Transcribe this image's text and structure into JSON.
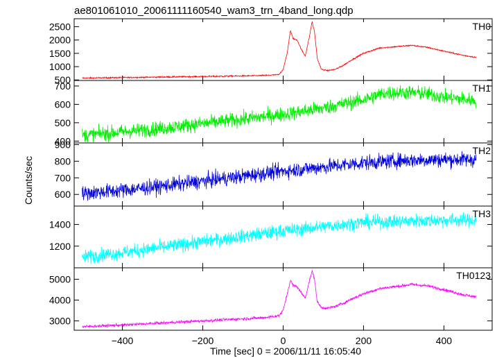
{
  "chart_data": {
    "type": "line",
    "title": "ae801061010_20061111160540_wam3_trn_4band_long.qdp",
    "xlabel": "Time [sec] 0 = 2006/11/11 16:05:40",
    "ylabel": "Counts/sec",
    "xlim": [
      -520,
      520
    ],
    "xticks": [
      -400,
      -200,
      0,
      200,
      400
    ],
    "xtick_labels": [
      "−400",
      "−200",
      "0",
      "200",
      "400"
    ],
    "panels": [
      {
        "name": "TH0",
        "color": "#ff0000",
        "ylim": [
          480,
          2800
        ],
        "yticks": [
          500,
          1000,
          1500,
          2000,
          2500
        ],
        "ytick_labels": [
          "500",
          "1000",
          "1500",
          "2000",
          "2500"
        ],
        "noise": 18,
        "x": [
          -500,
          -400,
          -300,
          -200,
          -100,
          -50,
          -10,
          0,
          10,
          18,
          25,
          35,
          45,
          55,
          65,
          72,
          78,
          85,
          95,
          110,
          130,
          150,
          170,
          200,
          240,
          280,
          320,
          360,
          400,
          450,
          480
        ],
        "y": [
          570,
          590,
          610,
          630,
          650,
          665,
          700,
          900,
          1500,
          2350,
          2050,
          2000,
          1650,
          1400,
          2100,
          2700,
          2300,
          1300,
          900,
          850,
          900,
          1050,
          1250,
          1500,
          1700,
          1750,
          1800,
          1720,
          1580,
          1420,
          1350
        ]
      },
      {
        "name": "TH1",
        "color": "#00ee00",
        "ylim": [
          390,
          730
        ],
        "yticks": [
          400,
          500,
          600,
          700
        ],
        "ytick_labels": [
          "400",
          "500",
          "600",
          "700"
        ],
        "noise": 28,
        "x": [
          -500,
          -400,
          -300,
          -200,
          -100,
          0,
          100,
          200,
          250,
          300,
          350,
          400,
          480
        ],
        "y": [
          430,
          450,
          470,
          495,
          520,
          545,
          580,
          625,
          660,
          665,
          660,
          640,
          620
        ]
      },
      {
        "name": "TH2",
        "color": "#0000dd",
        "ylim": [
          530,
          910
        ],
        "yticks": [
          600,
          700,
          800,
          900
        ],
        "ytick_labels": [
          "600",
          "700",
          "800",
          "900"
        ],
        "noise": 32,
        "x": [
          -500,
          -400,
          -300,
          -200,
          -100,
          0,
          100,
          200,
          300,
          400,
          480
        ],
        "y": [
          605,
          625,
          650,
          680,
          710,
          740,
          765,
          790,
          805,
          810,
          810
        ]
      },
      {
        "name": "TH3",
        "color": "#00ffff",
        "ylim": [
          1000,
          1570
        ],
        "yticks": [
          1200,
          1400
        ],
        "ytick_labels": [
          "1200",
          "1400"
        ],
        "noise": 45,
        "x": [
          -500,
          -400,
          -300,
          -200,
          -100,
          0,
          100,
          200,
          300,
          400,
          480
        ],
        "y": [
          1100,
          1140,
          1190,
          1240,
          1290,
          1340,
          1380,
          1420,
          1430,
          1440,
          1440
        ]
      },
      {
        "name": "TH0123",
        "color": "#ff00ff",
        "ylim": [
          2550,
          5550
        ],
        "yticks": [
          3000,
          4000,
          5000
        ],
        "ytick_labels": [
          "3000",
          "4000",
          "5000"
        ],
        "noise": 50,
        "x": [
          -500,
          -400,
          -300,
          -200,
          -100,
          -50,
          -10,
          0,
          10,
          18,
          25,
          35,
          45,
          55,
          65,
          72,
          78,
          85,
          95,
          110,
          130,
          150,
          170,
          200,
          240,
          280,
          320,
          360,
          400,
          450,
          480
        ],
        "y": [
          2720,
          2800,
          2900,
          3000,
          3100,
          3150,
          3250,
          3500,
          4300,
          4950,
          4700,
          4650,
          4350,
          4100,
          4900,
          5400,
          5000,
          3900,
          3650,
          3600,
          3700,
          3850,
          4050,
          4300,
          4550,
          4650,
          4750,
          4680,
          4500,
          4250,
          4150
        ]
      }
    ]
  }
}
